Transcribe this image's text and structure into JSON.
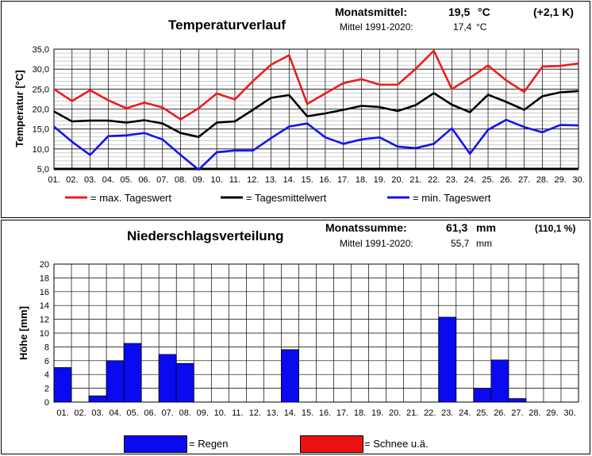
{
  "temperature": {
    "title": "Temperaturverlauf",
    "monthly_mean_label": "Monatsmittel:",
    "monthly_mean_value": "19,5",
    "monthly_mean_unit": "°C",
    "anomaly": "(+2,1 K)",
    "reference_label": "Mittel 1991-2020:",
    "reference_value": "17,4",
    "reference_unit": "°C",
    "legend": {
      "max": "= max.  Tageswert",
      "mean": "= Tagesmittelwert",
      "min": "= min. Tageswert"
    },
    "colors": {
      "max": "#ee1c1c",
      "mean": "#000000",
      "min": "#1414e6"
    }
  },
  "precipitation": {
    "title": "Niederschlagsverteilung",
    "sum_label": "Monatssumme:",
    "sum_value": "61,3",
    "sum_unit": "mm",
    "percent": "(110,1 %)",
    "reference_label": "Mittel 1991-2020:",
    "reference_value": "55,7",
    "reference_unit": "mm",
    "legend": {
      "rain": "= Regen",
      "snow": "= Schnee u.ä."
    },
    "colors": {
      "rain": "#0a0af0",
      "snow": "#ee1111"
    }
  },
  "chart_data": [
    {
      "type": "line",
      "ylabel": "Temperatur [°C]",
      "ylim": [
        5,
        35
      ],
      "yticks": [
        "5,0",
        "10,0",
        "15,0",
        "20,0",
        "25,0",
        "30,0",
        "35,0"
      ],
      "x": [
        "01.",
        "02.",
        "03.",
        "04.",
        "05.",
        "06.",
        "07.",
        "08.",
        "09.",
        "10.",
        "11.",
        "12.",
        "13.",
        "14.",
        "15.",
        "16.",
        "17.",
        "18.",
        "19.",
        "20.",
        "21.",
        "22.",
        "23.",
        "24.",
        "25.",
        "26.",
        "27.",
        "28.",
        "29.",
        "30."
      ],
      "grid": true,
      "series": [
        {
          "key": "max",
          "values": [
            25.0,
            22.0,
            24.7,
            22.2,
            20.2,
            21.6,
            20.4,
            17.4,
            20.2,
            23.9,
            22.4,
            27.0,
            31.1,
            33.5,
            21.3,
            23.9,
            26.5,
            27.5,
            26.1,
            26.1,
            30.1,
            34.6,
            25.0,
            27.8,
            30.9,
            27.2,
            24.3,
            30.6,
            30.8,
            31.4
          ]
        },
        {
          "key": "mean",
          "values": [
            19.4,
            16.9,
            17.1,
            17.1,
            16.6,
            17.2,
            16.4,
            14.0,
            13.0,
            16.6,
            16.9,
            19.8,
            22.8,
            23.5,
            18.2,
            18.9,
            19.8,
            20.8,
            20.5,
            19.5,
            21.0,
            24.0,
            21.1,
            19.2,
            23.6,
            21.8,
            19.8,
            23.2,
            24.2,
            24.5
          ]
        },
        {
          "key": "min",
          "values": [
            15.6,
            11.8,
            8.5,
            13.2,
            13.4,
            14.0,
            12.4,
            8.5,
            4.8,
            9.2,
            9.6,
            9.6,
            12.7,
            15.6,
            16.4,
            12.9,
            11.3,
            12.4,
            12.9,
            10.6,
            10.2,
            11.3,
            15.2,
            8.8,
            14.8,
            17.3,
            15.5,
            14.2,
            16.0,
            15.9
          ]
        }
      ]
    },
    {
      "type": "bar",
      "ylabel": "Höhe [mm]",
      "ylim": [
        0,
        20
      ],
      "yticks": [
        "0",
        "2",
        "4",
        "6",
        "8",
        "10",
        "12",
        "14",
        "16",
        "18",
        "20"
      ],
      "categories": [
        "01.",
        "02.",
        "03.",
        "04.",
        "05.",
        "06.",
        "07.",
        "08.",
        "09.",
        "10.",
        "11.",
        "12.",
        "13.",
        "14.",
        "15.",
        "16.",
        "17.",
        "18.",
        "19.",
        "20.",
        "21.",
        "22.",
        "23.",
        "24.",
        "25.",
        "26.",
        "27.",
        "28.",
        "29.",
        "30."
      ],
      "grid": true,
      "series": [
        {
          "key": "rain",
          "values": [
            5.0,
            0,
            0.9,
            6.0,
            8.5,
            0,
            6.9,
            5.6,
            0,
            0,
            0,
            0,
            0,
            7.6,
            0,
            0,
            0,
            0,
            0,
            0,
            0,
            0,
            12.3,
            0,
            2.0,
            6.1,
            0.5,
            0,
            0,
            0
          ]
        },
        {
          "key": "snow",
          "values": [
            0,
            0,
            0,
            0,
            0,
            0,
            0,
            0,
            0,
            0,
            0,
            0,
            0,
            0,
            0,
            0,
            0,
            0,
            0,
            0,
            0,
            0,
            0,
            0,
            0,
            0,
            0,
            0,
            0,
            0
          ]
        }
      ]
    }
  ]
}
